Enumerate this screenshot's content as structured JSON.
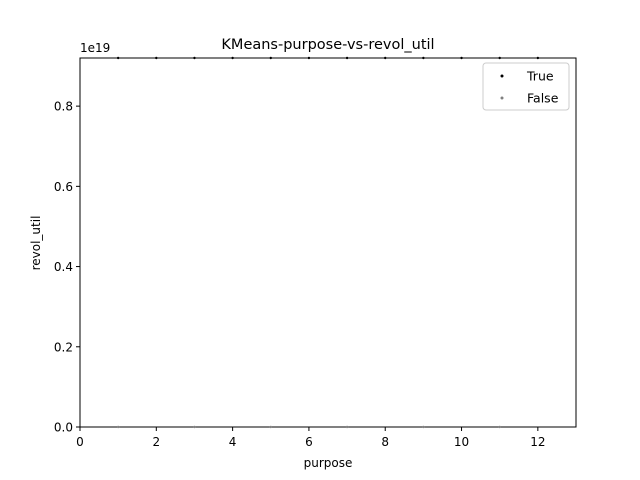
{
  "chart_data": {
    "type": "scatter",
    "title": "KMeans-purpose-vs-revol_util",
    "xlabel": "purpose",
    "ylabel": "revol_util",
    "y_offset_text": "1e19",
    "xlim": [
      0,
      13
    ],
    "ylim": [
      0,
      0.92
    ],
    "y_scale_multiplier": 1e+19,
    "xticks": [
      0,
      2,
      4,
      6,
      8,
      10,
      12
    ],
    "xtick_labels": [
      "0",
      "2",
      "4",
      "6",
      "8",
      "10",
      "12"
    ],
    "yticks": [
      0.0,
      0.2,
      0.4,
      0.6,
      0.8
    ],
    "ytick_labels": [
      "0.0",
      "0.2",
      "0.4",
      "0.6",
      "0.8"
    ],
    "grid": false,
    "legend_position": "top-right",
    "series": [
      {
        "name": "True",
        "color": "#000000",
        "x": [
          1,
          2,
          3,
          4,
          5,
          6,
          7,
          8,
          9,
          10,
          11,
          12
        ],
        "y": [
          0.92,
          0.92,
          0.92,
          0.92,
          0.92,
          0.92,
          0.92,
          0.92,
          0.92,
          0.92,
          0.92,
          0.92
        ]
      },
      {
        "name": "False",
        "color": "#808080",
        "x": [
          1,
          3,
          5,
          7,
          9,
          11
        ],
        "y": [
          0.0,
          0.0,
          0.0,
          0.0,
          0.0,
          0.0
        ]
      }
    ]
  }
}
